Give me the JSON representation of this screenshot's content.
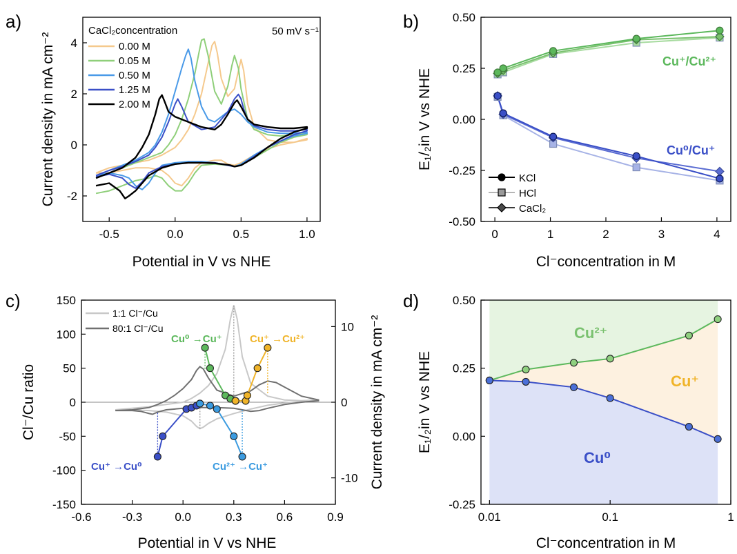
{
  "chart_data": [
    {
      "type": "line",
      "panel": "a)",
      "xlabel": "Potential in V vs NHE",
      "ylabel": "Current density in mA cm⁻²",
      "annotation": "50 mV s⁻¹",
      "legend_title": "CaCl₂concentration",
      "legend_position": "top-left",
      "xlim": [
        -0.7,
        1.1
      ],
      "ylim": [
        -3,
        5
      ],
      "xticks": [
        -0.5,
        0.0,
        0.5,
        1.0
      ],
      "xtick_labels": [
        "-0.5",
        "0.0",
        "0.5",
        "1.0"
      ],
      "yticks": [
        -2,
        0,
        2,
        4
      ],
      "ytick_labels": [
        "-2",
        "0",
        "2",
        "4"
      ],
      "grid": false,
      "series": [
        {
          "name": "0.00 M",
          "color": "#f5c98d",
          "x": [
            -0.6,
            -0.5,
            -0.4,
            -0.3,
            -0.2,
            -0.1,
            0.0,
            0.05,
            0.1,
            0.15,
            0.2,
            0.25,
            0.28,
            0.3,
            0.32,
            0.35,
            0.4,
            0.45,
            0.48,
            0.5,
            0.52,
            0.55,
            0.6,
            0.7,
            0.8,
            0.9,
            1.0,
            1.0,
            0.9,
            0.8,
            0.7,
            0.6,
            0.5,
            0.45,
            0.4,
            0.35,
            0.3,
            0.2,
            0.15,
            0.1,
            0.05,
            0.0,
            -0.05,
            -0.1,
            -0.2,
            -0.3,
            -0.4,
            -0.5,
            -0.6
          ],
          "y": [
            -1.1,
            -0.9,
            -0.8,
            -0.7,
            -0.6,
            -0.4,
            -0.1,
            0.2,
            0.6,
            1.2,
            2.0,
            3.2,
            3.9,
            4.05,
            3.6,
            2.6,
            1.9,
            2.2,
            2.9,
            3.35,
            2.9,
            1.6,
            0.7,
            0.2,
            0.1,
            0.1,
            0.25,
            0.2,
            0.1,
            0.0,
            -0.15,
            -0.4,
            -0.7,
            -0.8,
            -0.75,
            -0.6,
            -0.6,
            -0.7,
            -0.9,
            -1.3,
            -1.6,
            -1.5,
            -1.2,
            -1.0,
            -0.9,
            -0.9,
            -1.0,
            -1.1,
            -1.1
          ]
        },
        {
          "name": "0.05 M",
          "color": "#8fcf7a",
          "x": [
            -0.6,
            -0.5,
            -0.4,
            -0.3,
            -0.2,
            -0.1,
            -0.05,
            0.0,
            0.05,
            0.1,
            0.15,
            0.18,
            0.2,
            0.22,
            0.25,
            0.3,
            0.35,
            0.4,
            0.43,
            0.45,
            0.48,
            0.5,
            0.55,
            0.6,
            0.7,
            0.8,
            0.9,
            1.0,
            1.0,
            0.9,
            0.8,
            0.7,
            0.6,
            0.5,
            0.45,
            0.4,
            0.3,
            0.2,
            0.15,
            0.1,
            0.05,
            0.0,
            -0.05,
            -0.1,
            -0.15,
            -0.2,
            -0.3,
            -0.4,
            -0.5,
            -0.6
          ],
          "y": [
            -1.3,
            -1.1,
            -0.9,
            -0.7,
            -0.5,
            -0.3,
            0.0,
            0.4,
            1.0,
            1.8,
            2.8,
            3.6,
            4.1,
            4.15,
            3.5,
            2.1,
            1.6,
            2.3,
            3.1,
            3.5,
            3.0,
            2.2,
            1.0,
            0.6,
            0.4,
            0.35,
            0.4,
            0.45,
            0.4,
            0.3,
            0.1,
            -0.2,
            -0.5,
            -0.8,
            -0.85,
            -0.8,
            -0.75,
            -0.8,
            -1.1,
            -1.5,
            -1.8,
            -1.8,
            -1.6,
            -1.3,
            -1.2,
            -1.3,
            -1.4,
            -1.6,
            -1.8,
            -1.9
          ]
        },
        {
          "name": "0.50 M",
          "color": "#4a9ae8",
          "x": [
            -0.6,
            -0.5,
            -0.4,
            -0.3,
            -0.2,
            -0.15,
            -0.1,
            -0.05,
            0.0,
            0.05,
            0.08,
            0.1,
            0.12,
            0.15,
            0.2,
            0.25,
            0.3,
            0.35,
            0.4,
            0.45,
            0.5,
            0.55,
            0.6,
            0.7,
            0.8,
            0.9,
            1.0,
            1.0,
            0.9,
            0.8,
            0.7,
            0.6,
            0.5,
            0.45,
            0.4,
            0.3,
            0.2,
            0.1,
            0.0,
            -0.1,
            -0.15,
            -0.2,
            -0.25,
            -0.3,
            -0.35,
            -0.4,
            -0.5,
            -0.6
          ],
          "y": [
            -1.2,
            -1.0,
            -0.8,
            -0.6,
            -0.3,
            0.0,
            0.5,
            1.2,
            2.1,
            3.0,
            3.5,
            3.75,
            3.4,
            2.5,
            1.5,
            1.0,
            0.9,
            1.1,
            1.3,
            1.4,
            1.2,
            0.9,
            0.7,
            0.5,
            0.45,
            0.45,
            0.5,
            0.45,
            0.35,
            0.15,
            -0.1,
            -0.4,
            -0.75,
            -0.85,
            -0.8,
            -0.7,
            -0.65,
            -0.65,
            -0.7,
            -0.8,
            -1.1,
            -1.5,
            -1.75,
            -1.6,
            -1.3,
            -1.2,
            -1.1,
            -1.2
          ]
        },
        {
          "name": "1.25 M",
          "color": "#3a4fc7",
          "x": [
            -0.6,
            -0.5,
            -0.4,
            -0.3,
            -0.2,
            -0.15,
            -0.1,
            -0.05,
            0.0,
            0.02,
            0.05,
            0.1,
            0.2,
            0.3,
            0.4,
            0.45,
            0.48,
            0.5,
            0.52,
            0.55,
            0.6,
            0.7,
            0.8,
            0.9,
            1.0,
            1.0,
            0.9,
            0.8,
            0.7,
            0.6,
            0.5,
            0.45,
            0.4,
            0.35,
            0.3,
            0.2,
            0.1,
            0.0,
            -0.1,
            -0.2,
            -0.25,
            -0.3,
            -0.35,
            -0.4,
            -0.5,
            -0.6
          ],
          "y": [
            -1.2,
            -1.0,
            -0.85,
            -0.65,
            -0.4,
            -0.1,
            0.3,
            0.9,
            1.6,
            1.8,
            1.5,
            0.9,
            0.6,
            0.7,
            1.3,
            1.8,
            1.98,
            1.8,
            1.4,
            1.0,
            0.75,
            0.6,
            0.55,
            0.55,
            0.6,
            0.55,
            0.4,
            0.15,
            -0.1,
            -0.45,
            -0.8,
            -0.85,
            -0.8,
            -0.75,
            -0.7,
            -0.7,
            -0.7,
            -0.75,
            -0.85,
            -1.1,
            -1.45,
            -1.7,
            -1.55,
            -1.3,
            -1.15,
            -1.25
          ]
        },
        {
          "name": "2.00 M",
          "color": "#000000",
          "x": [
            -0.6,
            -0.5,
            -0.4,
            -0.3,
            -0.25,
            -0.2,
            -0.15,
            -0.12,
            -0.1,
            -0.08,
            -0.05,
            0.0,
            0.1,
            0.2,
            0.3,
            0.35,
            0.4,
            0.45,
            0.47,
            0.5,
            0.55,
            0.6,
            0.7,
            0.8,
            0.9,
            1.0,
            1.0,
            0.9,
            0.8,
            0.7,
            0.6,
            0.5,
            0.45,
            0.42,
            0.4,
            0.3,
            0.2,
            0.1,
            0.0,
            -0.1,
            -0.2,
            -0.25,
            -0.3,
            -0.35,
            -0.38,
            -0.42,
            -0.5,
            -0.6
          ],
          "y": [
            -1.3,
            -1.1,
            -0.9,
            -0.5,
            -0.1,
            0.4,
            1.2,
            1.8,
            1.95,
            1.7,
            1.3,
            1.1,
            0.9,
            0.7,
            0.6,
            0.8,
            1.2,
            1.65,
            1.75,
            1.5,
            1.0,
            0.8,
            0.7,
            0.65,
            0.65,
            0.7,
            0.65,
            0.5,
            0.25,
            -0.1,
            -0.5,
            -0.8,
            -0.85,
            -0.8,
            -0.78,
            -0.72,
            -0.7,
            -0.7,
            -0.75,
            -0.9,
            -1.2,
            -1.5,
            -1.8,
            -2.0,
            -2.1,
            -1.8,
            -1.5,
            -1.6
          ]
        }
      ]
    },
    {
      "type": "line",
      "panel": "b)",
      "xlabel": "Cl⁻concentration in M",
      "ylabel": "E₁/₂in V vs NHE",
      "xlim": [
        -0.25,
        4.25
      ],
      "ylim": [
        -0.5,
        0.5
      ],
      "xticks": [
        0,
        1,
        2,
        3,
        4
      ],
      "xtick_labels": [
        "0",
        "1",
        "2",
        "3",
        "4"
      ],
      "yticks": [
        -0.5,
        -0.25,
        0.0,
        0.25,
        0.5
      ],
      "ytick_labels": [
        "-0.50",
        "-0.25",
        "0.00",
        "0.25",
        "0.50"
      ],
      "grid": false,
      "legend_position": "bottom-left",
      "legend": [
        {
          "label": "KCl",
          "marker": "circle",
          "color": "#000000"
        },
        {
          "label": "HCl",
          "marker": "square",
          "color": "#9a9a9a"
        },
        {
          "label": "CaCl₂",
          "marker": "diamond",
          "color": "#4a4a4a"
        }
      ],
      "annotations": [
        "Cu⁺/Cu²⁺",
        "Cu⁰/Cu⁺"
      ],
      "series": [
        {
          "group": "Cu⁺/Cu²⁺",
          "marker": "circle",
          "color": "#5cb85c",
          "x": [
            0.05,
            0.15,
            1.05,
            2.55,
            4.05
          ],
          "y": [
            0.23,
            0.25,
            0.335,
            0.395,
            0.435
          ]
        },
        {
          "group": "Cu⁺/Cu²⁺",
          "marker": "square",
          "color": "#a8dba0",
          "x": [
            0.05,
            0.15,
            1.05,
            2.55,
            4.05
          ],
          "y": [
            0.22,
            0.23,
            0.32,
            0.375,
            0.4
          ]
        },
        {
          "group": "Cu⁺/Cu²⁺",
          "marker": "diamond",
          "color": "#7ac16f",
          "x": [
            0.05,
            0.15,
            1.05,
            2.55,
            4.05
          ],
          "y": [
            0.225,
            0.24,
            0.325,
            0.39,
            0.405
          ]
        },
        {
          "group": "Cu⁰/Cu⁺",
          "marker": "circle",
          "color": "#3a4fc7",
          "x": [
            0.05,
            0.15,
            1.05,
            2.55,
            4.05
          ],
          "y": [
            0.115,
            0.03,
            -0.085,
            -0.18,
            -0.29
          ]
        },
        {
          "group": "Cu⁰/Cu⁺",
          "marker": "square",
          "color": "#a7b3e6",
          "x": [
            0.05,
            0.15,
            1.05,
            2.55,
            4.05
          ],
          "y": [
            0.11,
            0.02,
            -0.12,
            -0.235,
            -0.3
          ]
        },
        {
          "group": "Cu⁰/Cu⁺",
          "marker": "diamond",
          "color": "#5a6cd2",
          "x": [
            0.05,
            0.15,
            1.05,
            2.55,
            4.05
          ],
          "y": [
            0.115,
            0.025,
            -0.09,
            -0.19,
            -0.255
          ]
        }
      ]
    },
    {
      "type": "line",
      "panel": "c)",
      "xlabel": "Potential in V vs NHE",
      "ylabel": "Cl⁻/Cu ratio",
      "ylabel_right": "Current density in mA cm⁻²",
      "xlim": [
        -0.6,
        0.9
      ],
      "ylim": [
        -150,
        150
      ],
      "ylim_right": [
        -13.5,
        13.5
      ],
      "xticks": [
        -0.6,
        -0.3,
        0.0,
        0.3,
        0.6,
        0.9
      ],
      "xtick_labels": [
        "-0.6",
        "-0.3",
        "0.0",
        "0.3",
        "0.6",
        "0.9"
      ],
      "yticks": [
        -150,
        -100,
        -50,
        0,
        50,
        100,
        150
      ],
      "ytick_labels": [
        "-150",
        "-100",
        "-50",
        "0",
        "50",
        "100",
        "150"
      ],
      "yticks_right": [
        -10,
        0,
        10
      ],
      "ytick_labels_right": [
        "-10",
        "0",
        "10"
      ],
      "grid": false,
      "legend_position": "top-left",
      "cv_series": [
        {
          "name": "1:1 Cl⁻/Cu",
          "color": "#c8c8c8",
          "x": [
            -0.4,
            -0.3,
            -0.2,
            -0.1,
            0.0,
            0.05,
            0.1,
            0.15,
            0.2,
            0.25,
            0.28,
            0.3,
            0.32,
            0.35,
            0.4,
            0.5,
            0.6,
            0.7,
            0.8,
            0.8,
            0.7,
            0.6,
            0.5,
            0.4,
            0.3,
            0.2,
            0.15,
            0.12,
            0.1,
            0.08,
            0.05,
            0.0,
            -0.1,
            -0.2,
            -0.3,
            -0.4
          ],
          "y": [
            -1.0,
            -0.8,
            -0.6,
            -0.3,
            0.0,
            0.5,
            1.2,
            2.2,
            3.8,
            7.0,
            11.0,
            12.8,
            11.0,
            6.0,
            2.5,
            0.8,
            0.3,
            0.2,
            0.3,
            0.2,
            0.1,
            -0.1,
            -0.4,
            -0.9,
            -1.5,
            -2.2,
            -2.8,
            -3.3,
            -3.5,
            -3.2,
            -2.5,
            -1.8,
            -1.3,
            -1.1,
            -1.0,
            -1.0
          ]
        },
        {
          "name": "80:1 Cl⁻/Cu",
          "color": "#707070",
          "x": [
            -0.4,
            -0.3,
            -0.2,
            -0.15,
            -0.1,
            -0.05,
            0.0,
            0.05,
            0.08,
            0.1,
            0.12,
            0.15,
            0.2,
            0.3,
            0.4,
            0.45,
            0.5,
            0.55,
            0.6,
            0.7,
            0.8,
            0.8,
            0.7,
            0.6,
            0.5,
            0.45,
            0.4,
            0.35,
            0.3,
            0.2,
            0.1,
            0.0,
            -0.1,
            -0.15,
            -0.18,
            -0.2,
            -0.25,
            -0.3,
            -0.4
          ],
          "y": [
            -1.1,
            -1.0,
            -0.7,
            -0.3,
            0.2,
            0.9,
            1.8,
            3.0,
            4.2,
            4.7,
            4.4,
            3.2,
            1.6,
            0.8,
            1.5,
            2.3,
            2.8,
            2.6,
            2.0,
            0.8,
            0.3,
            0.2,
            0.0,
            -0.3,
            -0.8,
            -1.1,
            -1.2,
            -1.0,
            -0.8,
            -0.7,
            -0.7,
            -0.8,
            -1.0,
            -1.3,
            -1.6,
            -1.5,
            -1.2,
            -1.1,
            -1.1
          ]
        }
      ],
      "ratio_series": [
        {
          "label": "Cu⁰ →Cu⁺",
          "color": "#5cb85c",
          "x": [
            0.13,
            0.16,
            0.25,
            0.28,
            0.31
          ],
          "y": [
            80,
            50,
            10,
            5,
            2
          ]
        },
        {
          "label": "Cu⁺ →Cu²⁺",
          "color": "#f0b429",
          "x": [
            0.31,
            0.37,
            0.38,
            0.44,
            0.5
          ],
          "y": [
            2,
            2,
            10,
            50,
            80
          ]
        },
        {
          "label": "Cu⁺ →Cu⁰",
          "color": "#3a4fc7",
          "x": [
            -0.15,
            -0.12,
            0.02,
            0.05,
            0.08,
            0.1
          ],
          "y": [
            -80,
            -50,
            -10,
            -8,
            -5,
            -2
          ]
        },
        {
          "label": "Cu²⁺ →Cu⁺",
          "color": "#3b9be0",
          "x": [
            0.1,
            0.16,
            0.2,
            0.3,
            0.35
          ],
          "y": [
            -2,
            -5,
            -10,
            -50,
            -80
          ]
        }
      ]
    },
    {
      "type": "line",
      "panel": "d)",
      "xlabel": "Cl⁻concentration in M",
      "ylabel": "E₁/₂in V vs NHE",
      "xscale": "log",
      "xlim": [
        0.0085,
        1.0
      ],
      "ylim": [
        -0.25,
        0.5
      ],
      "xticks": [
        0.01,
        0.1,
        1
      ],
      "xtick_labels": [
        "0.01",
        "0.1",
        "1"
      ],
      "yticks": [
        -0.25,
        0.0,
        0.25,
        0.5
      ],
      "ytick_labels": [
        "-0.25",
        "0.00",
        "0.25",
        "0.50"
      ],
      "grid": false,
      "region_labels": [
        "Cu²⁺",
        "Cu⁺",
        "Cu⁰"
      ],
      "region_colors": {
        "Cu2": "#e6f4e1",
        "Cu1": "#fdf1e0",
        "Cu0": "#dde2f7"
      },
      "series": [
        {
          "group": "Cu⁺/Cu²⁺",
          "color": "#5cb85c",
          "x": [
            0.01,
            0.02,
            0.05,
            0.1,
            0.45,
            0.78
          ],
          "y": [
            0.205,
            0.245,
            0.27,
            0.285,
            0.37,
            0.43
          ]
        },
        {
          "group": "Cu⁰/Cu⁺",
          "color": "#3a4fc7",
          "x": [
            0.01,
            0.02,
            0.05,
            0.1,
            0.45,
            0.78
          ],
          "y": [
            0.205,
            0.2,
            0.18,
            0.14,
            0.035,
            -0.01
          ]
        }
      ]
    }
  ]
}
